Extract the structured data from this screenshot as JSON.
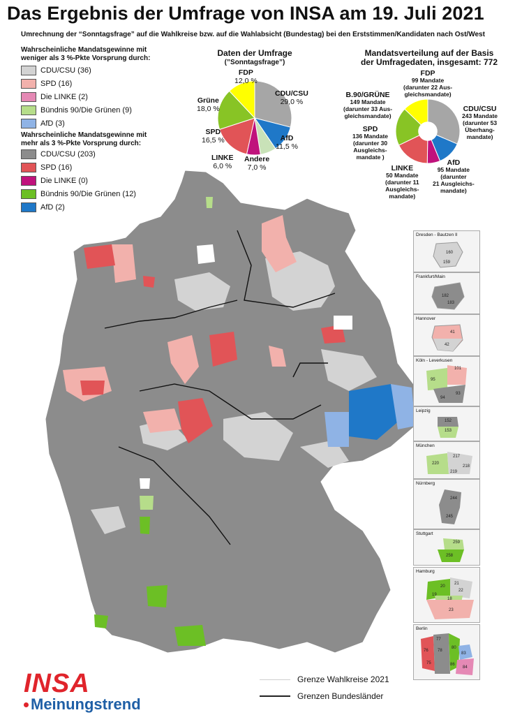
{
  "title": "Das Ergebnis der Umfrage von INSA am 19. Juli 2021",
  "subtitle": "Umrechnung der “Sonntagsfrage” auf die Wahlkreise bzw. auf die Wahlabsicht (Bundestag) bei den Erststimmen/Kandidaten nach Ost/West",
  "legend": {
    "weak_heading_1": "Wahrscheinliche Mandatsgewinne mit",
    "weak_heading_2": "weniger als 3 %-Pkte Vorsprung durch:",
    "weak": [
      {
        "label": "CDU/CSU (36)",
        "color": "#d3d3d3"
      },
      {
        "label": "SPD (16)",
        "color": "#f2b1ac"
      },
      {
        "label": "Die LINKE (2)",
        "color": "#e589b5"
      },
      {
        "label": "Bündnis 90/Die Grünen (9)",
        "color": "#b6dd8a"
      },
      {
        "label": "AfD (3)",
        "color": "#8fb3e5"
      }
    ],
    "strong_heading_1": "Wahrscheinliche Mandatsgewinne mit",
    "strong_heading_2": "mehr als 3 %-Pkte Vorsprung durch:",
    "strong": [
      {
        "label": "CDU/CSU (203)",
        "color": "#8c8c8c"
      },
      {
        "label": "SPD (16)",
        "color": "#e15457"
      },
      {
        "label": "Die LINKE (0)",
        "color": "#c0127c"
      },
      {
        "label": "Bündnis 90/Die Grünen (12)",
        "color": "#6cbf25"
      },
      {
        "label": "AfD (2)",
        "color": "#1f78c8"
      }
    ]
  },
  "poll": {
    "title_1": "Daten der Umfrage",
    "title_2": "(”Sonntagsfrage”)",
    "labels": {
      "fdp_name": "FDP",
      "fdp_val": "12,0 %",
      "cdu_name": "CDU/CSU",
      "cdu_val": "29,0 %",
      "gruene_name": "Grüne",
      "gruene_val": "18,0 %",
      "spd_name": "SPD",
      "spd_val": "16,5 %",
      "afd_name": "AfD",
      "afd_val": "11,5 %",
      "linke_name": "LINKE",
      "linke_val": "6,0 %",
      "andere_name": "Andere",
      "andere_val": "7,0 %"
    },
    "chart_data": {
      "type": "pie",
      "categories": [
        "CDU/CSU",
        "AfD",
        "Andere",
        "LINKE",
        "SPD",
        "Grüne",
        "FDP"
      ],
      "values": [
        29.0,
        11.5,
        7.0,
        6.0,
        16.5,
        18.0,
        12.0
      ],
      "colors": [
        "#a6a6a6",
        "#1f78c8",
        "#c9e2b8",
        "#c0127c",
        "#e15457",
        "#88c425",
        "#ffff00"
      ]
    }
  },
  "seats": {
    "title_1": "Mandatsverteilung auf der Basis",
    "title_2": "der Umfragedaten, insgesamt: 772",
    "labels": {
      "fdp_1": "FDP",
      "fdp_2": "99 Mandate",
      "fdp_3": "(darunter 22 Aus-",
      "fdp_4": "gleichsmandate)",
      "cdu_1": "CDU/CSU",
      "cdu_2": "243 Mandate",
      "cdu_3": "(darunter 53",
      "cdu_4": "Überhang-",
      "cdu_5": "mandate)",
      "gr_1": "B.90/GRÜNE",
      "gr_2": "149 Mandate",
      "gr_3": "(darunter 33 Aus-",
      "gr_4": "gleichsmandate)",
      "spd_1": "SPD",
      "spd_2": "136 Mandate",
      "spd_3": "(darunter 30",
      "spd_4": "Ausgleichs-",
      "spd_5": "mandate )",
      "afd_1": "AfD",
      "afd_2": "95 Mandate",
      "afd_3": "(darunter",
      "afd_4": "21 Ausgleichs-",
      "afd_5": "mandate)",
      "linke_1": "LINKE",
      "linke_2": "50 Mandate",
      "linke_3": "(darunter 11",
      "linke_4": "Ausgleichs-",
      "linke_5": "mandate)"
    },
    "chart_data": {
      "type": "pie",
      "categories": [
        "CDU/CSU",
        "AfD",
        "LINKE",
        "SPD",
        "B.90/GRÜNE",
        "FDP"
      ],
      "values": [
        243,
        95,
        50,
        136,
        149,
        99
      ],
      "colors": [
        "#a6a6a6",
        "#1f78c8",
        "#c0127c",
        "#e15457",
        "#88c425",
        "#ffff00"
      ]
    }
  },
  "insets": [
    {
      "label": "Dresden - Bautzen II",
      "nums": [
        "160",
        "159"
      ]
    },
    {
      "label": "Frankfurt/Main",
      "nums": [
        "182",
        "183"
      ]
    },
    {
      "label": "Hannover",
      "nums": [
        "41",
        "42"
      ]
    },
    {
      "label": "Köln - Leverkusen",
      "nums": [
        "101",
        "95",
        "94",
        "93"
      ]
    },
    {
      "label": "Leipzig",
      "nums": [
        "152",
        "153"
      ]
    },
    {
      "label": "München",
      "nums": [
        "217",
        "220",
        "218",
        "219"
      ]
    },
    {
      "label": "Nürnberg",
      "nums": [
        "244",
        "245"
      ]
    },
    {
      "label": "Stuttgart",
      "nums": [
        "259",
        "258"
      ]
    },
    {
      "label": "Hamburg",
      "nums": [
        "20",
        "21",
        "22",
        "19",
        "18",
        "23"
      ]
    },
    {
      "label": "Berlin",
      "nums": [
        "77",
        "76",
        "78",
        "80",
        "83",
        "84",
        "75",
        "86"
      ]
    }
  ],
  "bottom_legend": {
    "line1": "Grenze Wahlkreise 2021",
    "line2": "Grenzen Bundesländer"
  },
  "logo": {
    "top": "INSA",
    "bottom": "Meinungstrend",
    "color_top": "#e0242b",
    "color_bottom": "#1f5fa6"
  }
}
